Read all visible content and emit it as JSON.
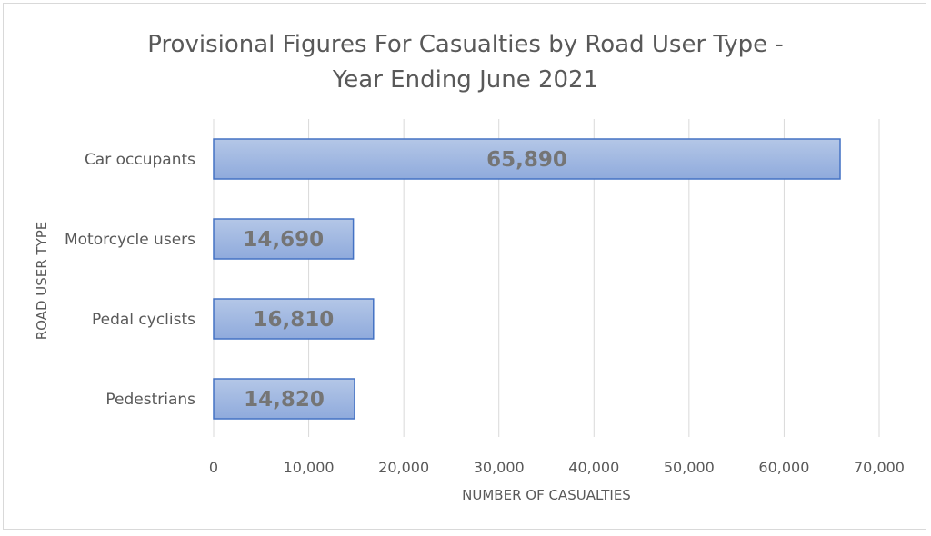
{
  "chart_data": {
    "type": "bar",
    "orientation": "horizontal",
    "title_lines": [
      "Provisional Figures For Casualties by Road User Type -",
      "Year Ending June 2021"
    ],
    "categories": [
      "Car occupants",
      "Motorcycle users",
      "Pedal cyclists",
      "Pedestrians"
    ],
    "values": [
      65890,
      14690,
      16810,
      14820
    ],
    "value_labels": [
      "65,890",
      "14,690",
      "16,810",
      "14,820"
    ],
    "xlabel": "NUMBER OF CASUALTIES",
    "ylabel": "ROAD USER TYPE",
    "xlim": [
      0,
      70000
    ],
    "ticks": [
      0,
      10000,
      20000,
      30000,
      40000,
      50000,
      60000,
      70000
    ],
    "tick_labels": [
      "0",
      "10,000",
      "20,000",
      "30,000",
      "40,000",
      "50,000",
      "60,000",
      "70,000"
    ],
    "grid": "vertical",
    "legend": "none",
    "colors": {
      "bar_top": "#b4c7e7",
      "bar_bottom": "#8faadc",
      "bar_border": "#4472c4",
      "text": "#595959",
      "data_label": "#757575",
      "grid": "#d9d9d9"
    }
  }
}
